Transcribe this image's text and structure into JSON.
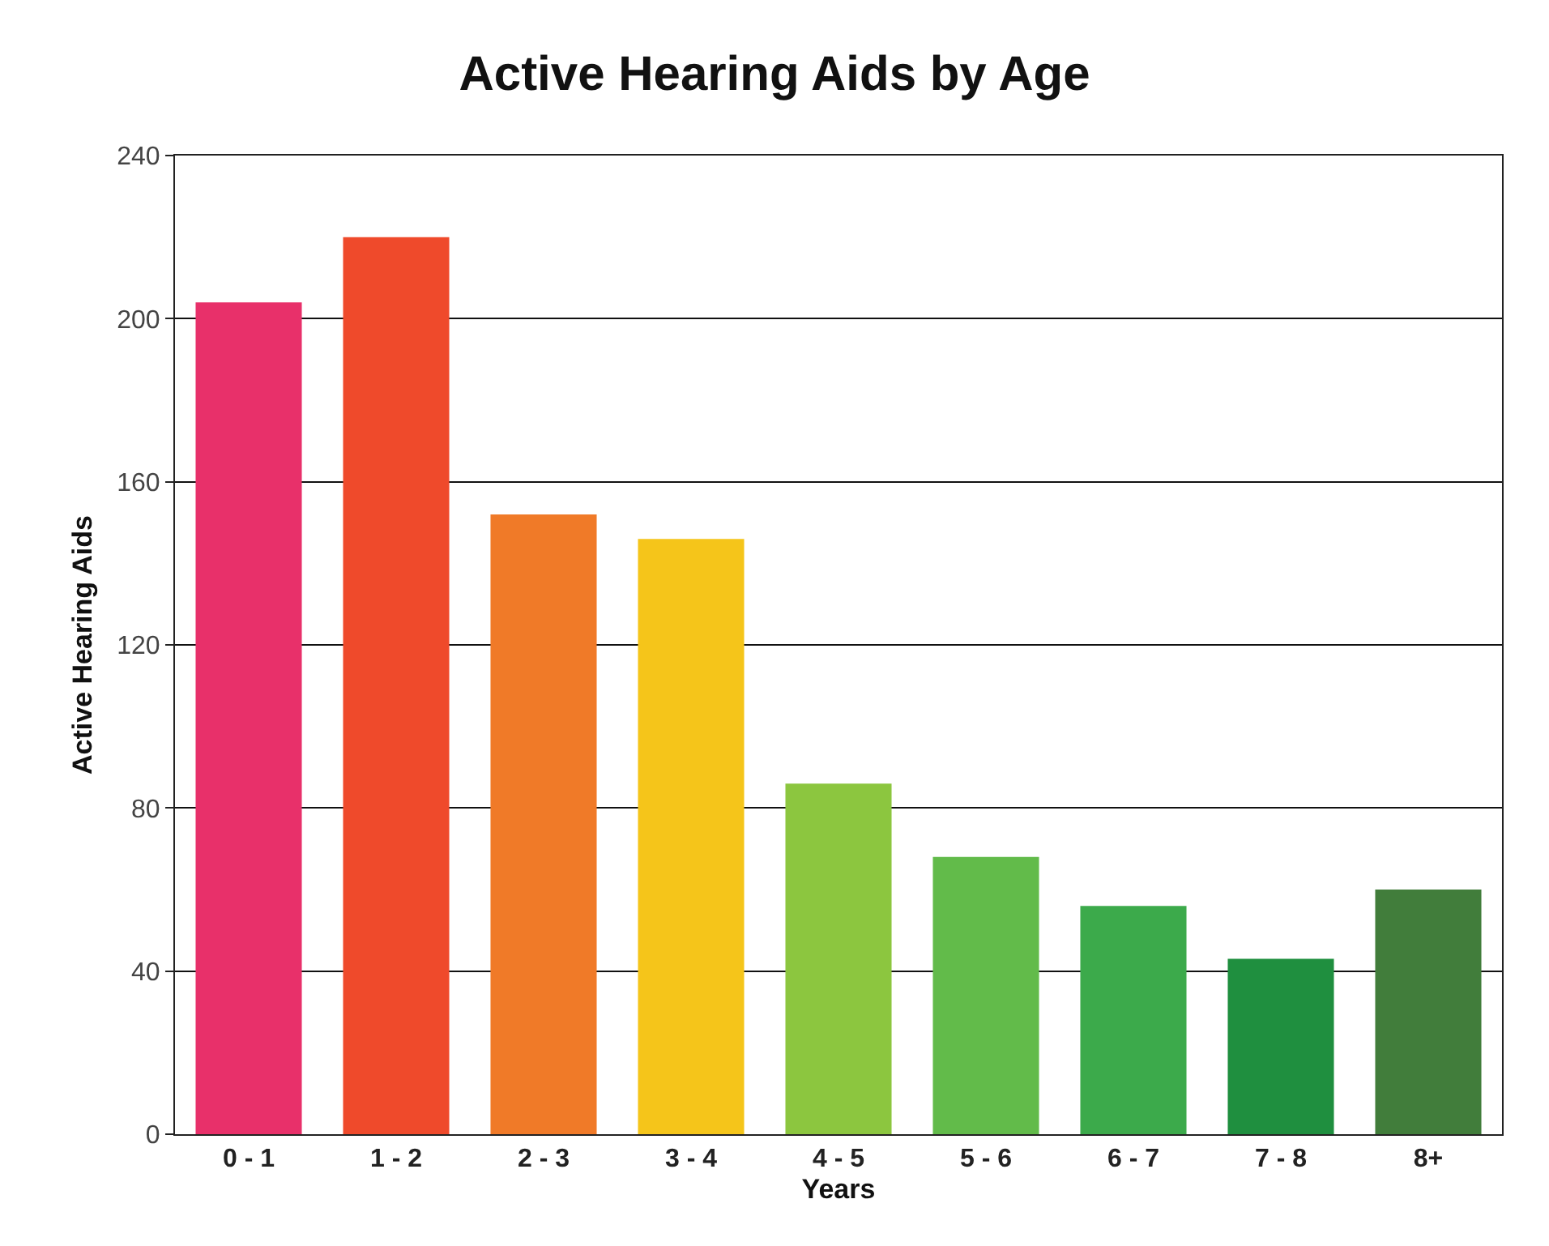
{
  "chart_data": {
    "type": "bar",
    "title": "Active Hearing Aids by Age",
    "xlabel": "Years",
    "ylabel": "Active Hearing Aids",
    "categories": [
      "0 - 1",
      "1 - 2",
      "2 - 3",
      "3 - 4",
      "4 - 5",
      "5 - 6",
      "6 - 7",
      "7 - 8",
      "8+"
    ],
    "values": [
      204,
      220,
      152,
      146,
      86,
      68,
      56,
      43,
      60
    ],
    "colors": [
      "#e8306a",
      "#ef4a2b",
      "#f07a28",
      "#f5c51a",
      "#8cc63f",
      "#62bb4a",
      "#3caa4b",
      "#1f8f3f",
      "#417d3b"
    ],
    "ylim": [
      0,
      240
    ],
    "yticks": [
      0,
      40,
      80,
      120,
      160,
      200,
      240
    ],
    "grid": "y"
  }
}
